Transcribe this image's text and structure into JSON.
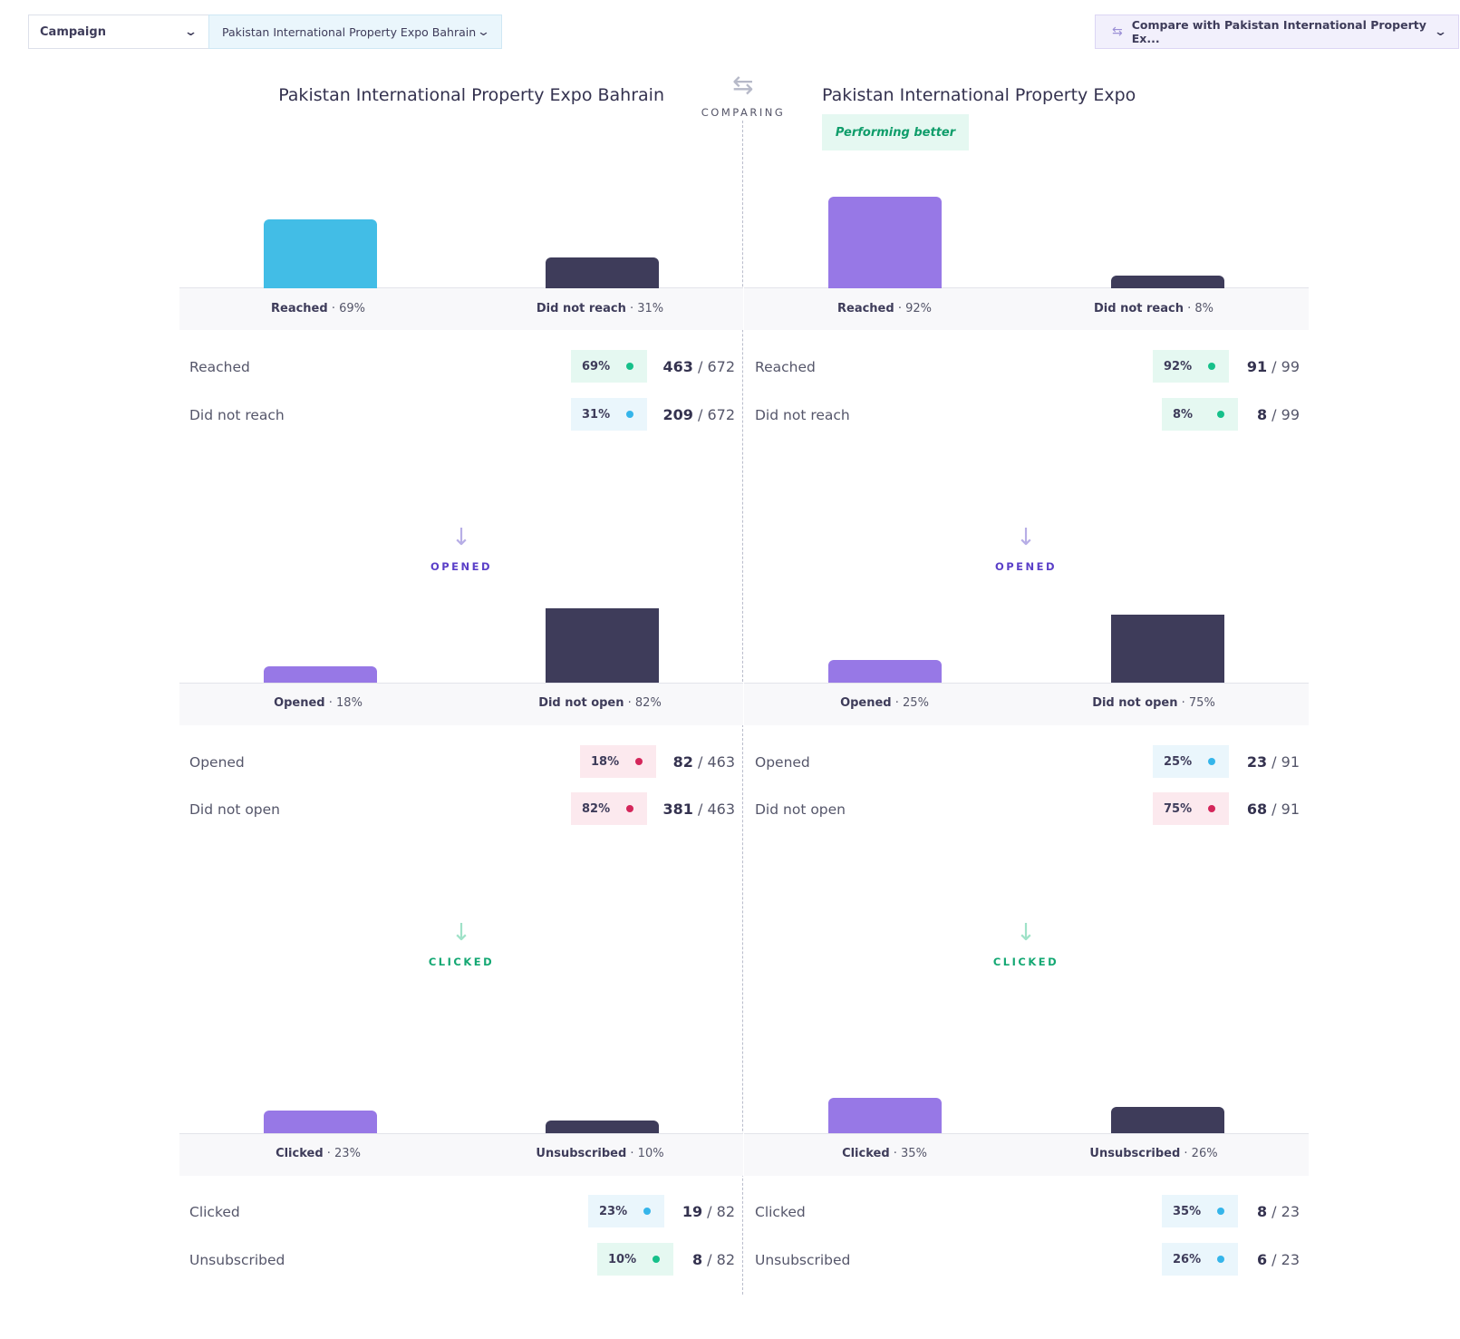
{
  "toolbar": {
    "filter_type": "Campaign",
    "selected_campaign": "Pakistan International Property Expo Bahrain",
    "compare_label": "Compare with Pakistan International Property Ex..."
  },
  "comparing_label": "COMPARING",
  "left": {
    "title": "Pakistan International Property Expo Bahrain",
    "stages": {
      "delivery": {
        "bars": [
          {
            "name": "Reached",
            "pct_label": "69%",
            "fraction": 0.69
          },
          {
            "name": "Did not reach",
            "pct_label": "31%",
            "fraction": 0.31
          }
        ],
        "rows": [
          {
            "label": "Reached",
            "pct": "69%",
            "num": "463",
            "den": "672"
          },
          {
            "label": "Did not reach",
            "pct": "31%",
            "num": "209",
            "den": "672"
          }
        ]
      },
      "opened": {
        "heading": "OPENED",
        "bars": [
          {
            "name": "Opened",
            "pct_label": "18%",
            "fraction": 0.18
          },
          {
            "name": "Did not open",
            "pct_label": "82%",
            "fraction": 0.82
          }
        ],
        "rows": [
          {
            "label": "Opened",
            "pct": "18%",
            "num": "82",
            "den": "463"
          },
          {
            "label": "Did not open",
            "pct": "82%",
            "num": "381",
            "den": "463"
          }
        ]
      },
      "clicked": {
        "heading": "CLICKED",
        "bars": [
          {
            "name": "Clicked",
            "pct_label": "23%",
            "fraction": 0.23
          },
          {
            "name": "Unsubscribed",
            "pct_label": "10%",
            "fraction": 0.1
          }
        ],
        "rows": [
          {
            "label": "Clicked",
            "pct": "23%",
            "num": "19",
            "den": "82"
          },
          {
            "label": "Unsubscribed",
            "pct": "10%",
            "num": "8",
            "den": "82"
          }
        ]
      }
    }
  },
  "right": {
    "title": "Pakistan International Property Expo",
    "badge": "Performing better",
    "stages": {
      "delivery": {
        "bars": [
          {
            "name": "Reached",
            "pct_label": "92%",
            "fraction": 0.92
          },
          {
            "name": "Did not reach",
            "pct_label": "8%",
            "fraction": 0.08
          }
        ],
        "rows": [
          {
            "label": "Reached",
            "pct": "92%",
            "num": "91",
            "den": "99"
          },
          {
            "label": "Did not reach",
            "pct": "8%",
            "num": "8",
            "den": "99"
          }
        ]
      },
      "opened": {
        "heading": "OPENED",
        "bars": [
          {
            "name": "Opened",
            "pct_label": "25%",
            "fraction": 0.25
          },
          {
            "name": "Did not open",
            "pct_label": "75%",
            "fraction": 0.75
          }
        ],
        "rows": [
          {
            "label": "Opened",
            "pct": "25%",
            "num": "23",
            "den": "91"
          },
          {
            "label": "Did not open",
            "pct": "75%",
            "num": "68",
            "den": "91"
          }
        ]
      },
      "clicked": {
        "heading": "CLICKED",
        "bars": [
          {
            "name": "Clicked",
            "pct_label": "35%",
            "fraction": 0.35
          },
          {
            "name": "Unsubscribed",
            "pct_label": "26%",
            "fraction": 0.26
          }
        ],
        "rows": [
          {
            "label": "Clicked",
            "pct": "35%",
            "num": "8",
            "den": "23"
          },
          {
            "label": "Unsubscribed",
            "pct": "26%",
            "num": "6",
            "den": "23"
          }
        ]
      }
    }
  },
  "colors": {
    "reached": "#42bde6",
    "purple": "#9778e6",
    "dark": "#3e3c5a",
    "chip_green_bg": "#e5f8f1",
    "chip_blue_bg": "#eaf6fc",
    "chip_red_bg": "#fce9ee",
    "dot_green": "#16c08a",
    "dot_blue": "#35b5ea",
    "dot_red": "#d4265a",
    "opened_heading": "#5a3fc8",
    "clicked_heading": "#14a873"
  },
  "chips": {
    "left": {
      "delivery": [
        "green",
        "blue"
      ],
      "opened": [
        "red",
        "red"
      ],
      "clicked": [
        "blue",
        "green"
      ]
    },
    "right": {
      "delivery": [
        "green",
        "green"
      ],
      "opened": [
        "blue",
        "red"
      ],
      "clicked": [
        "blue",
        "blue"
      ]
    }
  }
}
